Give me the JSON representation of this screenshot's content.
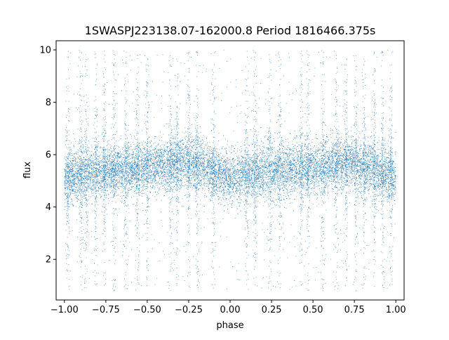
{
  "chart_data": {
    "type": "scatter",
    "title": "1SWASPJ223138.07-162000.8 Period 1816466.375s",
    "xlabel": "phase",
    "ylabel": "flux",
    "xlim": [
      -1.05,
      1.05
    ],
    "ylim": [
      0.45,
      10.35
    ],
    "x_ticks": [
      -1.0,
      -0.75,
      -0.5,
      -0.25,
      0.0,
      0.25,
      0.5,
      0.75,
      1.0
    ],
    "x_tick_labels": [
      "−1.00",
      "−0.75",
      "−0.50",
      "−0.25",
      "0.00",
      "0.25",
      "0.50",
      "0.75",
      "1.00"
    ],
    "y_ticks": [
      2,
      4,
      6,
      8,
      10
    ],
    "y_tick_labels": [
      "2",
      "4",
      "6",
      "8",
      "10"
    ],
    "grid": false,
    "marker_color": "#1f77b4",
    "series": [
      {
        "phase_range": [
          -1.0,
          1.0
        ],
        "typical_flux_range": [
          4.0,
          6.5
        ],
        "full_flux_range": [
          0.8,
          10.0
        ],
        "median_flux": 5.3,
        "flux_profile": {
          "phase": [
            -1.0,
            -0.75,
            -0.5,
            -0.25,
            0.0,
            0.25,
            0.5,
            0.75,
            1.0
          ],
          "median_flux": [
            5.1,
            5.4,
            5.5,
            5.7,
            5.1,
            5.4,
            5.5,
            5.7,
            5.1
          ]
        },
        "vertical_streaks_phase": [
          -0.98,
          -0.9,
          -0.87,
          -0.81,
          -0.76,
          -0.7,
          -0.63,
          -0.56,
          -0.5,
          -0.36,
          -0.32,
          -0.25,
          -0.2,
          -0.1,
          0.1,
          0.15,
          0.24,
          0.3,
          0.43,
          0.47,
          0.56,
          0.64,
          0.7,
          0.76,
          0.81,
          0.87,
          0.92,
          0.97
        ]
      }
    ]
  }
}
